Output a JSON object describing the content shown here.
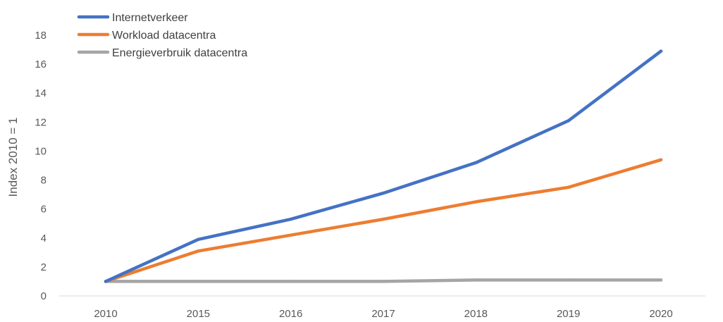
{
  "chart_data": {
    "type": "line",
    "title": "",
    "xlabel": "",
    "ylabel": "Index 2010 = 1",
    "ylim": [
      0,
      18
    ],
    "yticks": [
      0,
      2,
      4,
      6,
      8,
      10,
      12,
      14,
      16,
      18
    ],
    "categories": [
      "2010",
      "2015",
      "2016",
      "2017",
      "2018",
      "2019",
      "2020"
    ],
    "series": [
      {
        "name": "Internetverkeer",
        "color": "#4472C4",
        "values": [
          1,
          3.9,
          5.3,
          7.1,
          9.2,
          12.1,
          16.9
        ]
      },
      {
        "name": "Workload datacentra",
        "color": "#ED7D31",
        "values": [
          1,
          3.1,
          4.2,
          5.3,
          6.5,
          7.5,
          9.4
        ]
      },
      {
        "name": "Energieverbruik datacentra",
        "color": "#A5A5A5",
        "values": [
          1,
          1,
          1,
          1,
          1.1,
          1.1,
          1.1
        ]
      }
    ],
    "grid": false,
    "legend_position": "top-left"
  }
}
